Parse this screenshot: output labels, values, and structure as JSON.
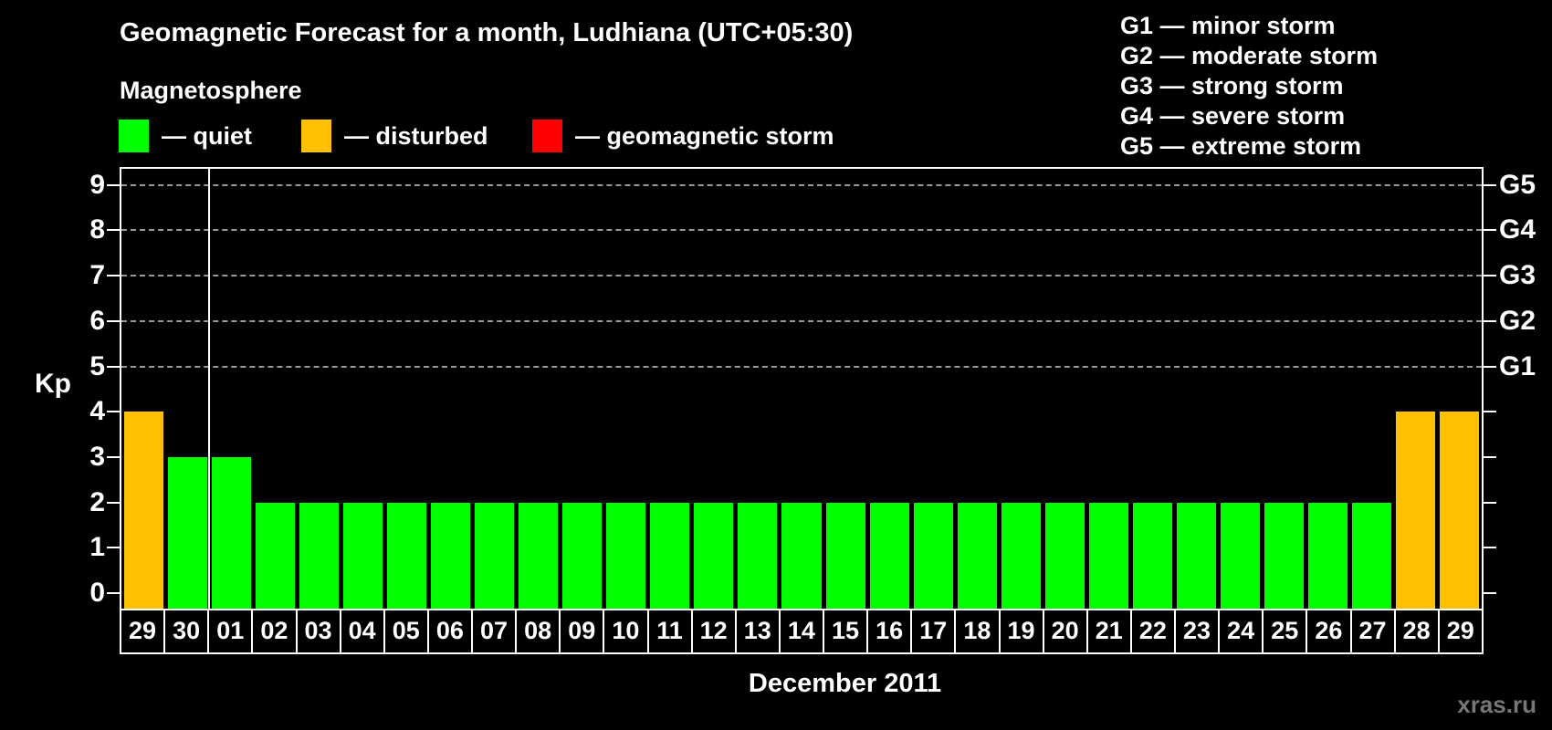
{
  "title": "Geomagnetic Forecast for a month, Ludhiana (UTC+05:30)",
  "subtitle": "Magnetosphere",
  "legend": {
    "items": [
      {
        "key": "quiet",
        "label": "— quiet",
        "color": "#00ff00"
      },
      {
        "key": "disturbed",
        "label": "— disturbed",
        "color": "#ffc000"
      },
      {
        "key": "storm",
        "label": "— geomagnetic storm",
        "color": "#ff0000"
      }
    ]
  },
  "storm_legend": {
    "items": [
      {
        "label": "G1 — minor storm"
      },
      {
        "label": "G2 — moderate storm"
      },
      {
        "label": "G3 — strong storm"
      },
      {
        "label": "G4 — severe storm"
      },
      {
        "label": "G5 — extreme storm"
      }
    ]
  },
  "watermark": "xras.ru",
  "chart_data": {
    "type": "bar",
    "title": "Geomagnetic Forecast for a month, Ludhiana (UTC+05:30)",
    "xlabel": "December 2011",
    "ylabel": "Kp",
    "ylim": [
      0,
      9.4
    ],
    "grid": "dashed horizontal at Kp 5-9 only",
    "legend_position": "top",
    "categories": [
      "29",
      "30",
      "01",
      "02",
      "03",
      "04",
      "05",
      "06",
      "07",
      "08",
      "09",
      "10",
      "11",
      "12",
      "13",
      "14",
      "15",
      "16",
      "17",
      "18",
      "19",
      "20",
      "21",
      "22",
      "23",
      "24",
      "25",
      "26",
      "27",
      "28",
      "29"
    ],
    "values": [
      4,
      3,
      3,
      2,
      2,
      2,
      2,
      2,
      2,
      2,
      2,
      2,
      2,
      2,
      2,
      2,
      2,
      2,
      2,
      2,
      2,
      2,
      2,
      2,
      2,
      2,
      2,
      2,
      2,
      4,
      4
    ],
    "statuses": [
      "disturbed",
      "quiet",
      "quiet",
      "quiet",
      "quiet",
      "quiet",
      "quiet",
      "quiet",
      "quiet",
      "quiet",
      "quiet",
      "quiet",
      "quiet",
      "quiet",
      "quiet",
      "quiet",
      "quiet",
      "quiet",
      "quiet",
      "quiet",
      "quiet",
      "quiet",
      "quiet",
      "quiet",
      "quiet",
      "quiet",
      "quiet",
      "quiet",
      "quiet",
      "disturbed",
      "disturbed"
    ],
    "y_ticks": [
      0,
      1,
      2,
      3,
      4,
      5,
      6,
      7,
      8,
      9
    ],
    "gridlines_at": [
      5,
      6,
      7,
      8,
      9
    ],
    "right_axis_labels": [
      {
        "label": "G1",
        "kp": 5
      },
      {
        "label": "G2",
        "kp": 6
      },
      {
        "label": "G3",
        "kp": 7
      },
      {
        "label": "G4",
        "kp": 8
      },
      {
        "label": "G5",
        "kp": 9
      }
    ],
    "month_separator_after_index": 1
  }
}
